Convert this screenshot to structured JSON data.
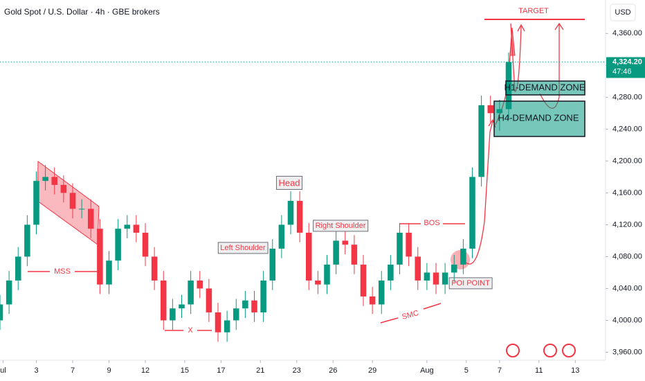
{
  "chart_data": {
    "type": "candlestick",
    "title": "Gold Spot / U.S. Dollar · 4h · GBE brokers",
    "currency": "USD",
    "up_color": "#089981",
    "down_color": "#f23645",
    "x": [
      0,
      3,
      6,
      9,
      12,
      15,
      18,
      21,
      24,
      27,
      30,
      33,
      36,
      39,
      42,
      45,
      48,
      51,
      54,
      57,
      60,
      63,
      66,
      69,
      72,
      75,
      78,
      81,
      84,
      87,
      90,
      93,
      96,
      99,
      102,
      105,
      108,
      111,
      114,
      117,
      120,
      123,
      126,
      129,
      132,
      135,
      138,
      141,
      144,
      147,
      150,
      153,
      156,
      159,
      162,
      165,
      168
    ],
    "open": [
      4000,
      4020,
      4050,
      4080,
      4120,
      4175,
      4180,
      4170,
      4160,
      4140,
      4140,
      4115,
      4045,
      4075,
      4115,
      4120,
      4110,
      4080,
      4050,
      4000,
      4015,
      4020,
      4050,
      4040,
      4010,
      3985,
      4000,
      4015,
      4025,
      4010,
      4050,
      4090,
      4120,
      4150,
      4110,
      4050,
      4045,
      4070,
      4100,
      4095,
      4070,
      4030,
      4020,
      4050,
      4070,
      4110,
      4080,
      4050,
      4060,
      4045,
      4060,
      4070,
      4090,
      4180,
      4270,
      4260,
      4265
    ],
    "high": [
      4032,
      4062,
      4092,
      4132,
      4187,
      4195,
      4192,
      4182,
      4172,
      4152,
      4152,
      4127,
      4087,
      4127,
      4132,
      4132,
      4122,
      4092,
      4062,
      4027,
      4032,
      4062,
      4062,
      4052,
      4022,
      4012,
      4027,
      4037,
      4037,
      4062,
      4102,
      4132,
      4162,
      4162,
      4122,
      4062,
      4082,
      4112,
      4112,
      4107,
      4082,
      4042,
      4062,
      4082,
      4122,
      4122,
      4092,
      4072,
      4072,
      4072,
      4082,
      4102,
      4192,
      4282,
      4282,
      4277,
      4336
    ],
    "low": [
      3988,
      4008,
      4038,
      4068,
      4108,
      4163,
      4158,
      4148,
      4128,
      4128,
      4103,
      4033,
      4033,
      4063,
      4103,
      4098,
      4068,
      4038,
      3988,
      3988,
      4003,
      4008,
      4028,
      3998,
      3973,
      3973,
      3988,
      4003,
      3998,
      3998,
      4038,
      4078,
      4108,
      4098,
      4038,
      4033,
      4033,
      4058,
      4083,
      4058,
      4018,
      4008,
      4008,
      4038,
      4058,
      4068,
      4038,
      4038,
      4033,
      4033,
      4048,
      4058,
      4078,
      4168,
      4248,
      4238,
      4253
    ],
    "close": [
      4020,
      4050,
      4080,
      4120,
      4175,
      4180,
      4170,
      4160,
      4140,
      4140,
      4115,
      4045,
      4075,
      4115,
      4120,
      4110,
      4080,
      4050,
      4000,
      4015,
      4020,
      4050,
      4040,
      4010,
      3985,
      4000,
      4015,
      4025,
      4010,
      4050,
      4090,
      4120,
      4150,
      4110,
      4050,
      4045,
      4070,
      4100,
      4095,
      4070,
      4030,
      4020,
      4050,
      4070,
      4110,
      4080,
      4050,
      4060,
      4045,
      4060,
      4070,
      4090,
      4180,
      4270,
      4260,
      4265,
      4324.2
    ],
    "xlim": [
      0,
      200
    ],
    "xticks": [
      {
        "value": 1,
        "label": "ul"
      },
      {
        "value": 12,
        "label": "3"
      },
      {
        "value": 24,
        "label": "7"
      },
      {
        "value": 36,
        "label": "9"
      },
      {
        "value": 48,
        "label": "12"
      },
      {
        "value": 61,
        "label": "15"
      },
      {
        "value": 73,
        "label": "17"
      },
      {
        "value": 86,
        "label": "21"
      },
      {
        "value": 98,
        "label": "23"
      },
      {
        "value": 110,
        "label": "26"
      },
      {
        "value": 123,
        "label": "29"
      },
      {
        "value": 141,
        "label": "Aug"
      },
      {
        "value": 154,
        "label": "5"
      },
      {
        "value": 165,
        "label": "7"
      },
      {
        "value": 178,
        "label": "11"
      },
      {
        "value": 190,
        "label": "13"
      }
    ],
    "ylim": [
      3950,
      4402
    ],
    "yticks": [
      {
        "value": 3960,
        "label": "3,960.00"
      },
      {
        "value": 4000,
        "label": "4,000.00"
      },
      {
        "value": 4040,
        "label": "4,040.00"
      },
      {
        "value": 4080,
        "label": "4,080.00"
      },
      {
        "value": 4120,
        "label": "4,120.00"
      },
      {
        "value": 4160,
        "label": "4,160.00"
      },
      {
        "value": 4200,
        "label": "4,200.00"
      },
      {
        "value": 4240,
        "label": "4,240.00"
      },
      {
        "value": 4280,
        "label": "4,280.00"
      },
      {
        "value": 4320,
        "label": "4,320.00"
      },
      {
        "value": 4360,
        "label": "4,360.00"
      }
    ],
    "current_price": {
      "value": 4324.2,
      "label": "4,324.20"
    },
    "countdown": "47:46",
    "annotations": [
      "TARGET",
      "H1-DEMAND ZONE",
      "H4-DEMAND ZONE",
      "BOS",
      "POI POINT",
      "SMC",
      "Right Shoulder",
      "Head",
      "Left Shoulder",
      "MSS",
      "X"
    ]
  }
}
